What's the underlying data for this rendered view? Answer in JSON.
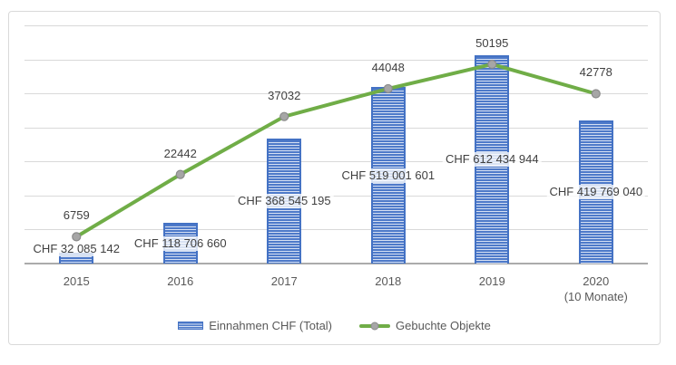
{
  "chart_data": {
    "type": "bar",
    "subtype": "combo-bar-line",
    "title": "",
    "categories": [
      "2015",
      "2016",
      "2017",
      "2018",
      "2019",
      "2020"
    ],
    "category_sublabels": [
      "",
      "",
      "",
      "",
      "",
      "(10 Monate)"
    ],
    "series": [
      {
        "name": "Einnahmen CHF (Total)",
        "type": "bar",
        "axis": "primary",
        "values": [
          32085142,
          118706660,
          368545195,
          519001601,
          612434944,
          419769040
        ],
        "data_labels": [
          "CHF 32 085 142",
          "CHF 118 706 660",
          "CHF 368 545 195",
          "CHF 519 001 601",
          "CHF 612 434 944",
          "CHF 419 769 040"
        ],
        "color": "#4472C4"
      },
      {
        "name": "Gebuchte Objekte",
        "type": "line",
        "axis": "secondary",
        "values": [
          6759,
          22442,
          37032,
          44048,
          50195,
          42778
        ],
        "data_labels": [
          "6759",
          "22442",
          "37032",
          "44048",
          "50195",
          "42778"
        ],
        "color": "#70AD47",
        "marker_color": "#A6A6A6"
      }
    ],
    "axes": {
      "primary_y": {
        "min": 0,
        "max": 700000000,
        "hidden": true
      },
      "secondary_y": {
        "min": 0,
        "max": 60000,
        "hidden": true
      }
    },
    "grid": true,
    "gridline_count": 7,
    "legend_position": "bottom-center"
  },
  "colors": {
    "bar_edge": "#4472C4",
    "bar_stripe_dark": "#4E7AC9",
    "bar_stripe_light": "#D6E0F3",
    "line_green": "#70AD47",
    "marker_gray": "#A6A6A6",
    "gridline": "#D9D9D9",
    "axis_line": "#ABABAB",
    "data_label_text": "#404040",
    "category_text": "#595959"
  }
}
